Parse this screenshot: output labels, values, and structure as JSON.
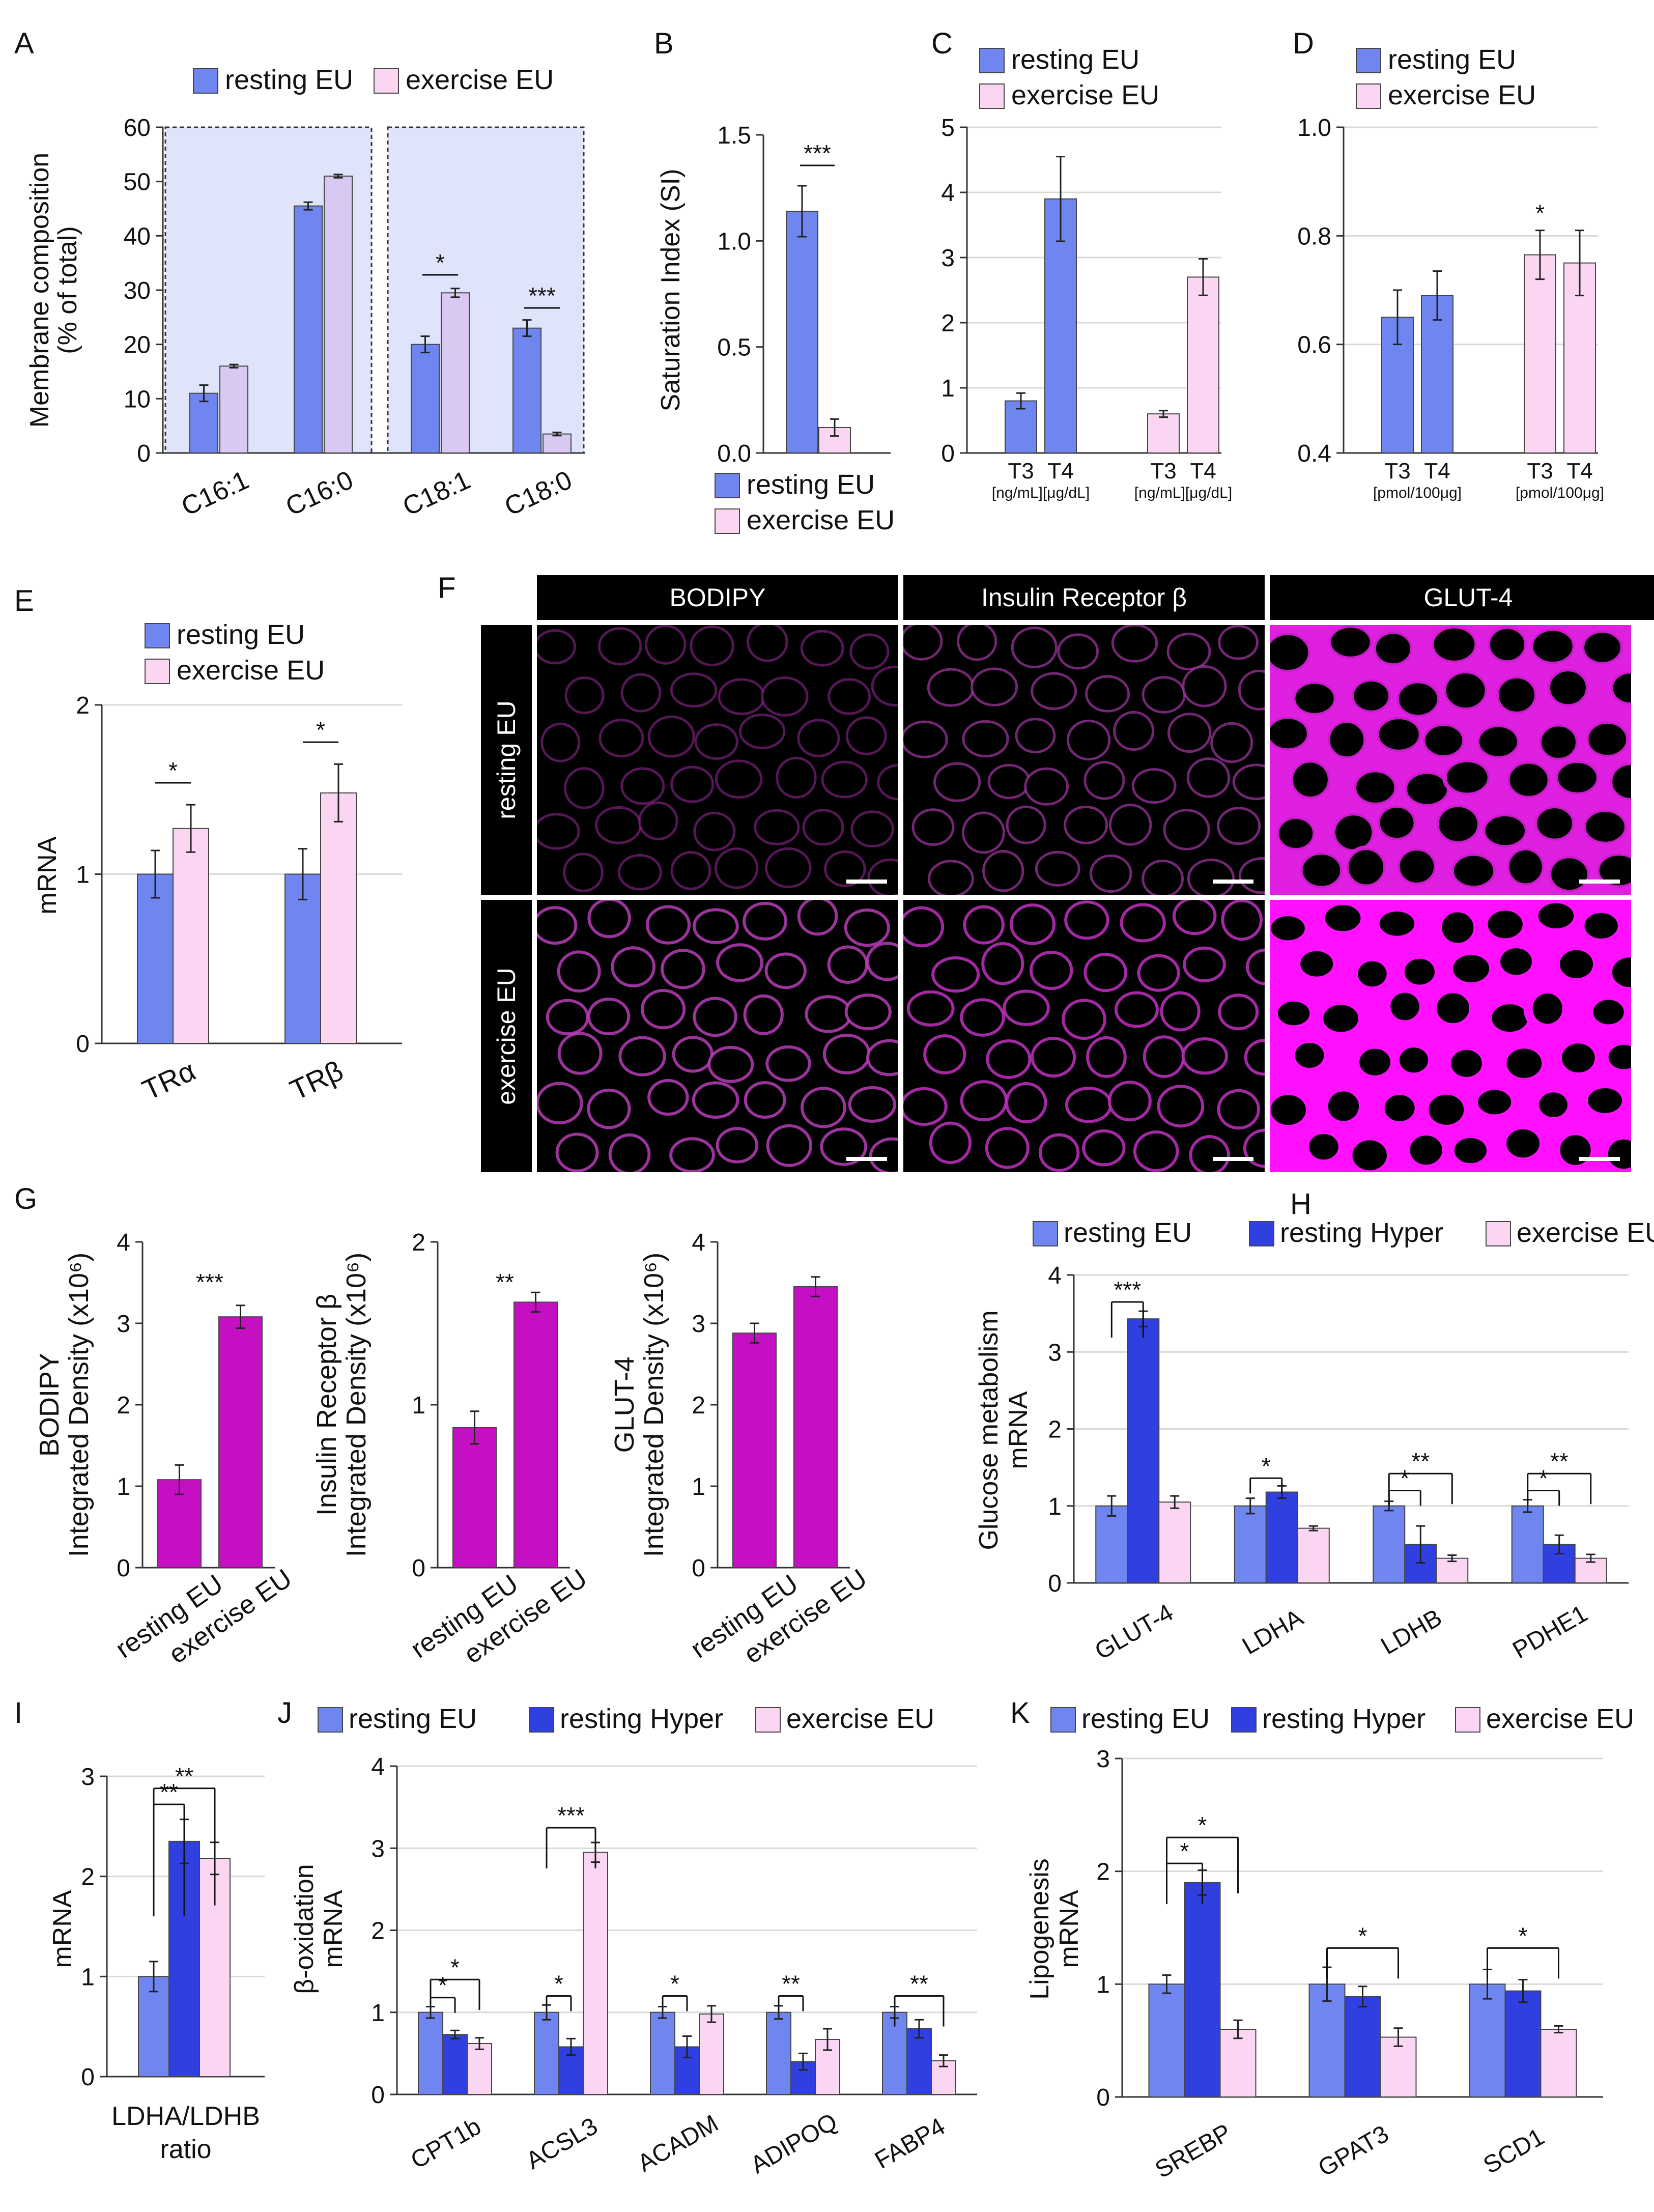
{
  "colors": {
    "resting_eu": "#6f86f0",
    "resting_hyper": "#2f3fe0",
    "exercise_eu": "#fbd6f2",
    "magenta": "#c410c2",
    "lipid_bg": "#dfe4fb"
  },
  "chart_data": [
    {
      "id": "A",
      "letter": "A",
      "type": "bar",
      "ylabel1": "Membrane composition",
      "ylabel2": "(% of total)",
      "ylim": [
        0,
        60
      ],
      "ticks": [
        "0",
        "10",
        "20",
        "30",
        "40",
        "50",
        "60"
      ],
      "categories": [
        "C16:1",
        "C16:0",
        "C18:1",
        "C18:0"
      ],
      "legend": [
        "resting EU",
        "exercise EU"
      ],
      "series": [
        {
          "name": "resting EU",
          "values": [
            11,
            45.5,
            20,
            23
          ],
          "err": [
            1.5,
            0.7,
            1.5,
            1.5
          ]
        },
        {
          "name": "exercise EU",
          "values": [
            16,
            51,
            29.5,
            3.5
          ],
          "err": [
            0.3,
            0.3,
            0.8,
            0.3
          ]
        }
      ],
      "sig": [
        {
          "cat": 2,
          "text": "*"
        },
        {
          "cat": 3,
          "text": "***"
        }
      ]
    },
    {
      "id": "B",
      "letter": "B",
      "type": "bar",
      "ylabel1": "Saturation Index (SI)",
      "ylim": [
        0,
        1.5
      ],
      "ticks": [
        "0.0",
        "0.5",
        "1.0",
        "1.5"
      ],
      "categories": [
        ""
      ],
      "legend": [
        "resting EU",
        "exercise EU"
      ],
      "series": [
        {
          "name": "resting EU",
          "values": [
            1.14
          ],
          "err": [
            0.12
          ]
        },
        {
          "name": "exercise EU",
          "values": [
            0.12
          ],
          "err": [
            0.04
          ]
        }
      ],
      "sig": [
        {
          "text": "***"
        }
      ]
    },
    {
      "id": "C",
      "letter": "C",
      "type": "bar",
      "ylim": [
        0,
        5
      ],
      "ticks": [
        "0",
        "1",
        "2",
        "3",
        "4",
        "5"
      ],
      "legend": [
        "resting EU",
        "exercise EU"
      ],
      "groups": [
        {
          "labels": [
            "T3",
            "T4"
          ],
          "units": "[ng/mL][μg/dL]"
        },
        {
          "labels": [
            "T3",
            "T4"
          ],
          "units": "[ng/mL][μg/dL]"
        }
      ],
      "series": [
        {
          "name": "resting EU",
          "values": [
            0.8,
            3.9
          ],
          "err": [
            0.12,
            0.65
          ]
        },
        {
          "name": "exercise EU",
          "values": [
            0.6,
            2.7
          ],
          "err": [
            0.05,
            0.28
          ]
        }
      ]
    },
    {
      "id": "D",
      "letter": "D",
      "type": "bar",
      "ylim": [
        0.4,
        1.0
      ],
      "ticks": [
        "0.4",
        "0.6",
        "0.8",
        "1.0"
      ],
      "legend": [
        "resting EU",
        "exercise EU"
      ],
      "groups": [
        {
          "labels": [
            "T3",
            "T4"
          ],
          "units": "[pmol/100μg]"
        },
        {
          "labels": [
            "T3",
            "T4"
          ],
          "units": "[pmol/100μg]"
        }
      ],
      "series": [
        {
          "name": "resting EU",
          "values": [
            0.65,
            0.69
          ],
          "err": [
            0.05,
            0.045
          ]
        },
        {
          "name": "exercise EU",
          "values": [
            0.765,
            0.75
          ],
          "err": [
            0.045,
            0.06
          ]
        }
      ],
      "sig": [
        {
          "text": "*"
        }
      ]
    },
    {
      "id": "E",
      "letter": "E",
      "type": "bar",
      "ylabel1": "mRNA",
      "ylim": [
        0,
        2
      ],
      "ticks": [
        "0",
        "1",
        "2"
      ],
      "categories": [
        "TRα",
        "TRβ"
      ],
      "legend": [
        "resting EU",
        "exercise EU"
      ],
      "series": [
        {
          "name": "resting EU",
          "values": [
            1.0,
            1.0
          ],
          "err": [
            0.14,
            0.15
          ]
        },
        {
          "name": "exercise EU",
          "values": [
            1.27,
            1.48
          ],
          "err": [
            0.14,
            0.17
          ]
        }
      ],
      "sig": [
        {
          "cat": 0,
          "text": "*"
        },
        {
          "cat": 1,
          "text": "*"
        }
      ]
    },
    {
      "id": "G1",
      "letter": "G",
      "type": "bar",
      "ylabel1": "BODIPY",
      "ylabel2": "Integrated Density (x10⁶)",
      "ylim": [
        0,
        4
      ],
      "ticks": [
        "0",
        "1",
        "2",
        "3",
        "4"
      ],
      "categories": [
        "resting EU",
        "exercise EU"
      ],
      "values": [
        1.08,
        3.08
      ],
      "err": [
        0.18,
        0.14
      ],
      "sig": "***"
    },
    {
      "id": "G2",
      "type": "bar",
      "ylabel1": "Insulin Receptor β",
      "ylabel2": "Integrated Density (x10⁶)",
      "ylim": [
        0,
        2
      ],
      "ticks": [
        "0",
        "1",
        "2"
      ],
      "categories": [
        "resting EU",
        "exercise EU"
      ],
      "values": [
        0.86,
        1.63
      ],
      "err": [
        0.1,
        0.06
      ],
      "sig": "**"
    },
    {
      "id": "G3",
      "type": "bar",
      "ylabel1": "GLUT-4",
      "ylabel2": "Integrated Density (x10⁶)",
      "ylim": [
        0,
        4
      ],
      "ticks": [
        "0",
        "1",
        "2",
        "3",
        "4"
      ],
      "categories": [
        "resting EU",
        "exercise EU"
      ],
      "values": [
        2.88,
        3.45
      ],
      "err": [
        0.12,
        0.12
      ]
    },
    {
      "id": "H",
      "letter": "H",
      "type": "bar",
      "ylabel1": "Glucose metabolism",
      "ylabel2": "mRNA",
      "ylim": [
        0,
        4
      ],
      "ticks": [
        "0",
        "1",
        "2",
        "3",
        "4"
      ],
      "categories": [
        "GLUT-4",
        "LDHA",
        "LDHB",
        "PDHE1"
      ],
      "legend": [
        "resting EU",
        "resting Hyper",
        "exercise EU"
      ],
      "series": [
        {
          "name": "resting EU",
          "values": [
            1.0,
            1.0,
            1.0,
            1.0
          ],
          "err": [
            0.13,
            0.1,
            0.06,
            0.08
          ]
        },
        {
          "name": "resting Hyper",
          "values": [
            3.43,
            1.18,
            0.5,
            0.5
          ],
          "err": [
            0.1,
            0.08,
            0.24,
            0.12
          ]
        },
        {
          "name": "exercise EU",
          "values": [
            1.05,
            0.71,
            0.32,
            0.32
          ],
          "err": [
            0.08,
            0.03,
            0.04,
            0.05
          ]
        }
      ],
      "sig": [
        {
          "cat": 0,
          "text": "***"
        },
        {
          "cat": 1,
          "text": "*"
        },
        {
          "cat": 2,
          "text": "*"
        },
        {
          "cat": 2,
          "text": "**"
        },
        {
          "cat": 3,
          "text": "*"
        },
        {
          "cat": 3,
          "text": "**"
        }
      ]
    },
    {
      "id": "I",
      "letter": "I",
      "type": "bar",
      "ylabel1": "mRNA",
      "ylim": [
        0,
        3
      ],
      "ticks": [
        "0",
        "1",
        "2",
        "3"
      ],
      "xlabel1": "LDHA/LDHB",
      "xlabel2": "ratio",
      "values": [
        1.0,
        2.35,
        2.18
      ],
      "err": [
        0.15,
        0.22,
        0.16
      ],
      "sig": [
        {
          "text": "**"
        },
        {
          "text": "**"
        }
      ]
    },
    {
      "id": "J",
      "letter": "J",
      "type": "bar",
      "ylabel1": "β-oxidation",
      "ylabel2": "mRNA",
      "ylim": [
        0,
        4
      ],
      "ticks": [
        "0",
        "1",
        "2",
        "3",
        "4"
      ],
      "categories": [
        "CPT1b",
        "ACSL3",
        "ACADM",
        "ADIPOQ",
        "FABP4"
      ],
      "legend": [
        "resting EU",
        "resting Hyper",
        "exercise EU"
      ],
      "series": [
        {
          "name": "resting EU",
          "values": [
            1.0,
            1.0,
            1.0,
            1.0,
            1.0
          ],
          "err": [
            0.07,
            0.09,
            0.07,
            0.08,
            0.07
          ]
        },
        {
          "name": "resting Hyper",
          "values": [
            0.73,
            0.58,
            0.58,
            0.4,
            0.8
          ],
          "err": [
            0.05,
            0.1,
            0.13,
            0.1,
            0.11
          ]
        },
        {
          "name": "exercise EU",
          "values": [
            0.62,
            2.95,
            0.98,
            0.67,
            0.41
          ],
          "err": [
            0.07,
            0.12,
            0.1,
            0.13,
            0.07
          ]
        }
      ],
      "sig": [
        {
          "cat": 0,
          "text": "*"
        },
        {
          "cat": 0,
          "text": "*"
        },
        {
          "cat": 1,
          "text": "*"
        },
        {
          "cat": 1,
          "text": "***"
        },
        {
          "cat": 2,
          "text": "*"
        },
        {
          "cat": 3,
          "text": "**"
        },
        {
          "cat": 4,
          "text": "**"
        }
      ]
    },
    {
      "id": "K",
      "letter": "K",
      "type": "bar",
      "ylabel1": "Lipogenesis",
      "ylabel2": "mRNA",
      "ylim": [
        0,
        3
      ],
      "ticks": [
        "0",
        "1",
        "2",
        "3"
      ],
      "categories": [
        "SREBP",
        "GPAT3",
        "SCD1"
      ],
      "legend": [
        "resting EU",
        "resting Hyper",
        "exercise EU"
      ],
      "series": [
        {
          "name": "resting EU",
          "values": [
            1.0,
            1.0,
            1.0
          ],
          "err": [
            0.08,
            0.15,
            0.13
          ]
        },
        {
          "name": "resting Hyper",
          "values": [
            1.9,
            0.89,
            0.94
          ],
          "err": [
            0.11,
            0.09,
            0.1
          ]
        },
        {
          "name": "exercise EU",
          "values": [
            0.6,
            0.53,
            0.6
          ],
          "err": [
            0.08,
            0.08,
            0.03
          ]
        }
      ],
      "sig": [
        {
          "cat": 0,
          "text": "*"
        },
        {
          "cat": 0,
          "text": "*"
        },
        {
          "cat": 1,
          "text": "*"
        },
        {
          "cat": 2,
          "text": "*"
        }
      ]
    }
  ],
  "panel_f": {
    "letter": "F",
    "columns": [
      "BODIPY",
      "Insulin Receptor β",
      "GLUT-4"
    ],
    "rows": [
      "resting EU",
      "exercise EU"
    ]
  }
}
